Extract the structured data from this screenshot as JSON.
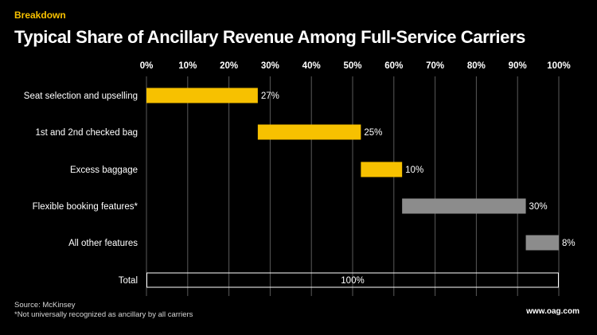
{
  "header": {
    "kicker": "Breakdown",
    "title": "Typical Share of Ancillary Revenue Among Full-Service Carriers"
  },
  "footer": {
    "source": "Source: McKinsey",
    "note": "*Not universally recognized as ancillary by all carriers",
    "site": "www.oag.com"
  },
  "colors": {
    "accent": "#f7c100",
    "gray": "#8c8c8c",
    "total_outline": "#ffffff",
    "gridline": "#5a5a5a",
    "background": "#000000"
  },
  "chart_data": {
    "type": "bar",
    "subtype": "waterfall-horizontal",
    "title": "Typical Share of Ancillary Revenue Among Full-Service Carriers",
    "xlim": [
      0,
      100
    ],
    "x_ticks": [
      "0%",
      "10%",
      "20%",
      "30%",
      "40%",
      "50%",
      "60%",
      "70%",
      "80%",
      "90%",
      "100%"
    ],
    "tick_position": "top",
    "grid": true,
    "categories": [
      "Seat selection and upselling",
      "1st and 2nd checked bag",
      "Excess baggage",
      "Flexible booking features*",
      "All other features",
      "Total"
    ],
    "values": [
      27,
      25,
      10,
      30,
      8,
      100
    ],
    "labels": [
      "27%",
      "25%",
      "10%",
      "30%",
      "8%",
      "100%"
    ],
    "bar_colors": [
      "accent",
      "accent",
      "accent",
      "gray",
      "gray",
      "outline"
    ]
  }
}
